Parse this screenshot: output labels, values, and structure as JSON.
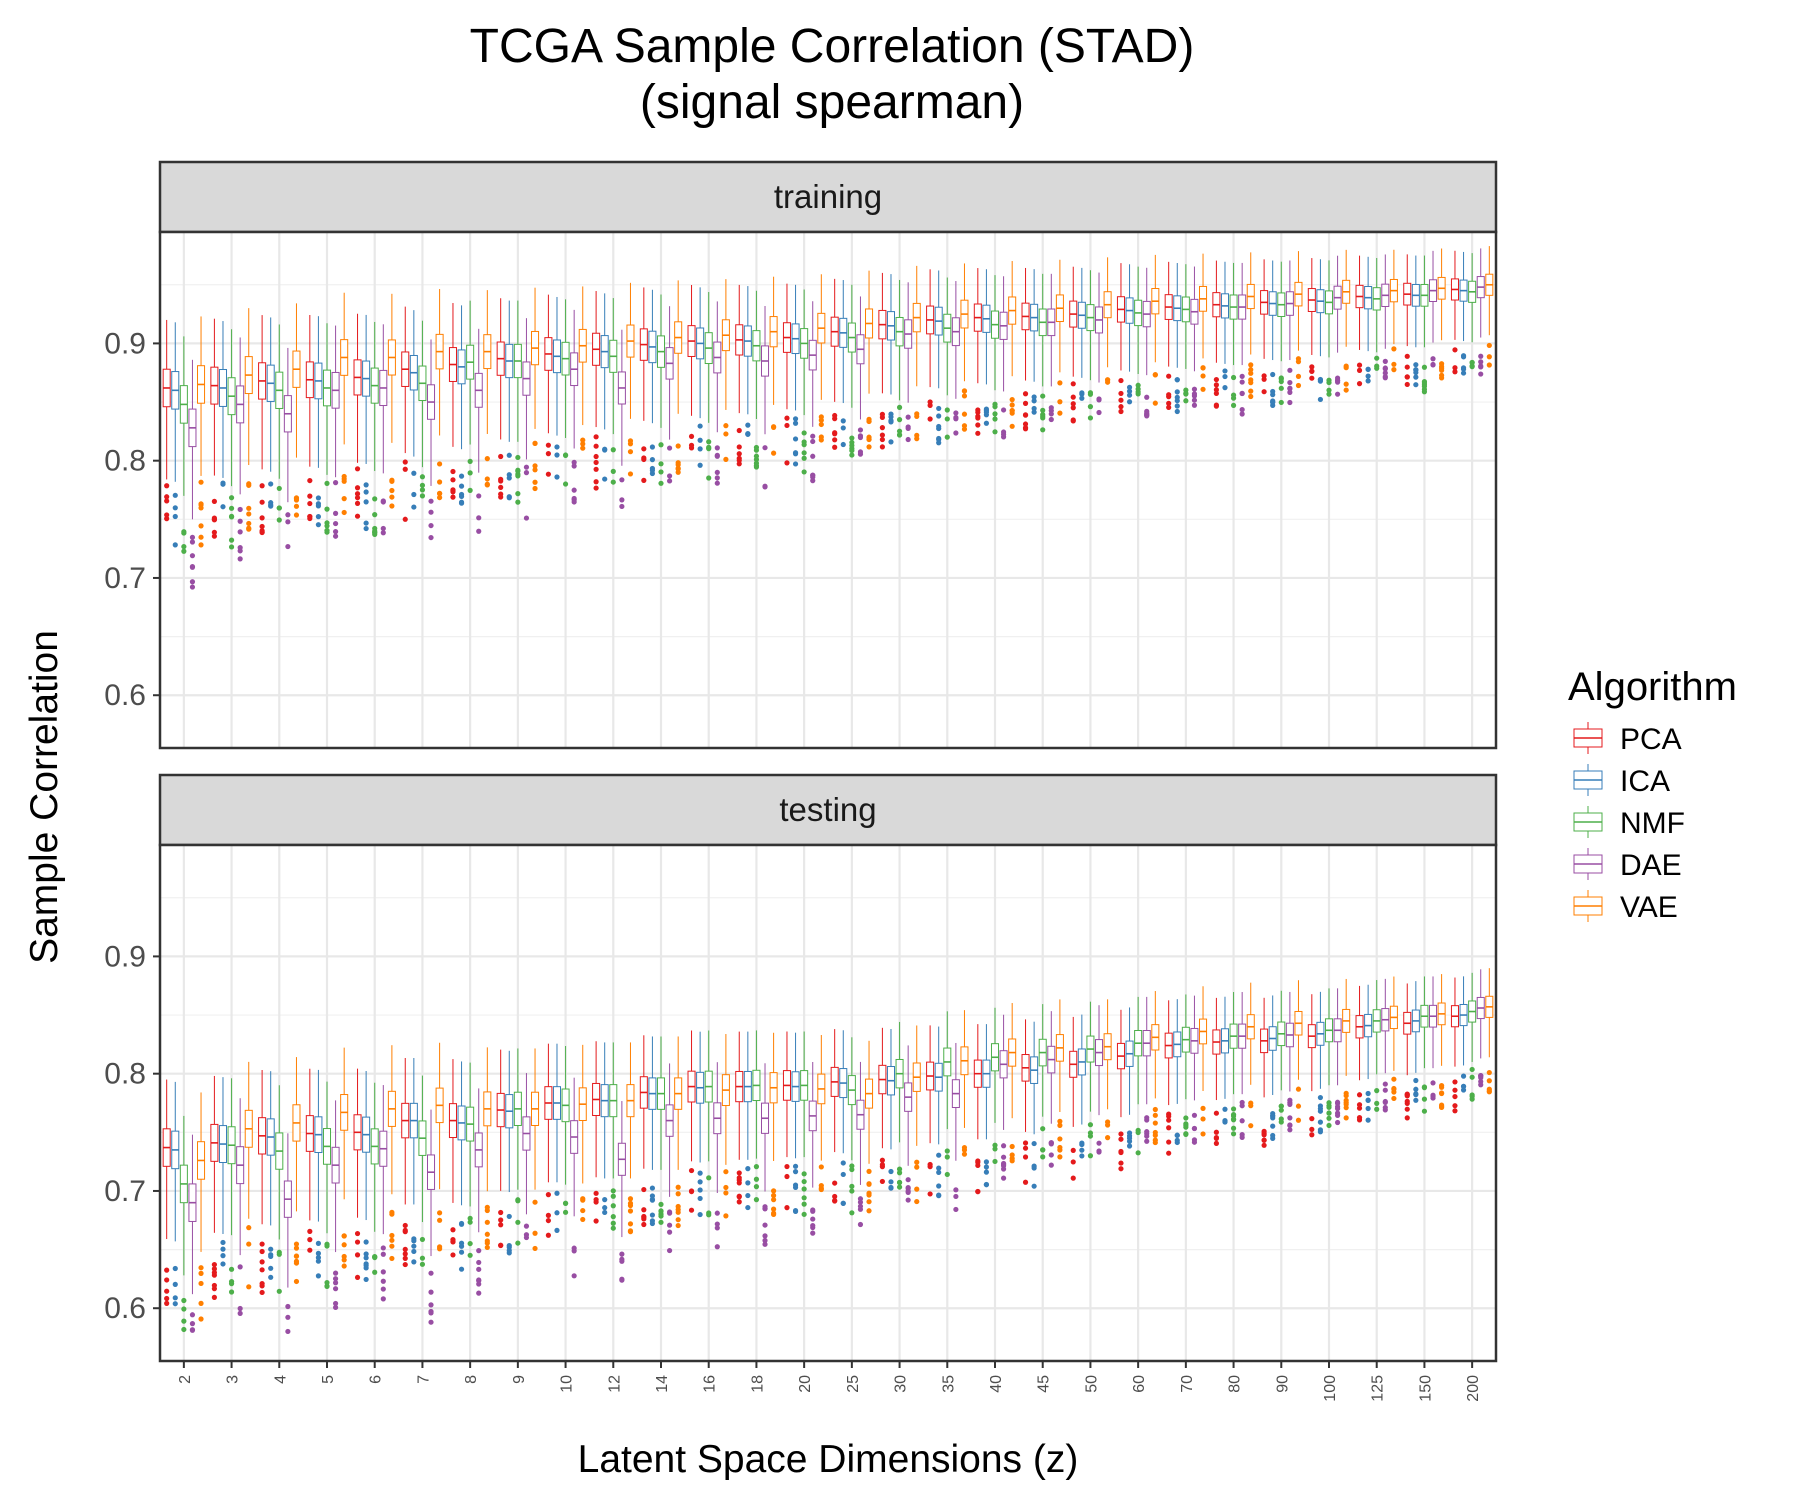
{
  "chart_data": {
    "type": "box",
    "title": "TCGA Sample Correlation (STAD)",
    "subtitle": "(signal spearman)",
    "xlabel": "Latent Space Dimensions (z)",
    "ylabel": "Sample Correlation",
    "ylim": [
      0.555,
      0.995
    ],
    "yticks": [
      0.6,
      0.7,
      0.8,
      0.9
    ],
    "ytick_labels": [
      "0.6",
      "0.7",
      "0.8",
      "0.9"
    ],
    "categories": [
      "2",
      "3",
      "4",
      "5",
      "6",
      "7",
      "8",
      "9",
      "10",
      "12",
      "14",
      "16",
      "18",
      "20",
      "25",
      "30",
      "35",
      "40",
      "45",
      "50",
      "60",
      "70",
      "80",
      "90",
      "100",
      "125",
      "150",
      "200"
    ],
    "legend": {
      "title": "Algorithm",
      "position": "right",
      "entries": [
        {
          "name": "PCA",
          "color": "#e41a1c"
        },
        {
          "name": "ICA",
          "color": "#377eb8"
        },
        {
          "name": "NMF",
          "color": "#4daf4a"
        },
        {
          "name": "DAE",
          "color": "#984ea3"
        },
        {
          "name": "VAE",
          "color": "#ff7f00"
        }
      ]
    },
    "panels": [
      {
        "name": "training",
        "median": {
          "PCA": [
            0.862,
            0.864,
            0.868,
            0.869,
            0.871,
            0.878,
            0.882,
            0.887,
            0.891,
            0.895,
            0.899,
            0.902,
            0.903,
            0.905,
            0.91,
            0.916,
            0.92,
            0.922,
            0.923,
            0.925,
            0.929,
            0.931,
            0.933,
            0.935,
            0.937,
            0.94,
            0.942,
            0.946
          ],
          "ICA": [
            0.86,
            0.862,
            0.866,
            0.868,
            0.87,
            0.875,
            0.88,
            0.885,
            0.889,
            0.893,
            0.897,
            0.9,
            0.902,
            0.904,
            0.909,
            0.915,
            0.919,
            0.921,
            0.922,
            0.924,
            0.928,
            0.93,
            0.932,
            0.934,
            0.936,
            0.939,
            0.941,
            0.945
          ],
          "NMF": [
            0.848,
            0.855,
            0.86,
            0.862,
            0.864,
            0.866,
            0.884,
            0.885,
            0.887,
            0.889,
            0.893,
            0.896,
            0.898,
            0.9,
            0.905,
            0.91,
            0.913,
            0.916,
            0.918,
            0.922,
            0.926,
            0.929,
            0.931,
            0.933,
            0.935,
            0.938,
            0.941,
            0.944
          ],
          "DAE": [
            0.828,
            0.848,
            0.84,
            0.86,
            0.862,
            0.85,
            0.86,
            0.87,
            0.878,
            0.862,
            0.883,
            0.888,
            0.885,
            0.89,
            0.895,
            0.908,
            0.91,
            0.915,
            0.918,
            0.92,
            0.925,
            0.927,
            0.931,
            0.934,
            0.939,
            0.941,
            0.945,
            0.948
          ],
          "VAE": [
            0.865,
            0.873,
            0.878,
            0.888,
            0.888,
            0.893,
            0.893,
            0.896,
            0.898,
            0.902,
            0.905,
            0.907,
            0.91,
            0.913,
            0.917,
            0.922,
            0.925,
            0.928,
            0.93,
            0.933,
            0.936,
            0.938,
            0.94,
            0.942,
            0.944,
            0.945,
            0.947,
            0.95
          ]
        }
      },
      {
        "name": "testing",
        "median": {
          "PCA": [
            0.737,
            0.741,
            0.747,
            0.749,
            0.75,
            0.76,
            0.76,
            0.769,
            0.775,
            0.778,
            0.784,
            0.789,
            0.789,
            0.79,
            0.793,
            0.795,
            0.798,
            0.8,
            0.805,
            0.808,
            0.815,
            0.824,
            0.827,
            0.828,
            0.832,
            0.84,
            0.843,
            0.849
          ],
          "ICA": [
            0.735,
            0.74,
            0.746,
            0.748,
            0.748,
            0.76,
            0.758,
            0.768,
            0.775,
            0.777,
            0.783,
            0.788,
            0.789,
            0.789,
            0.792,
            0.794,
            0.797,
            0.8,
            0.803,
            0.81,
            0.817,
            0.825,
            0.828,
            0.83,
            0.834,
            0.841,
            0.845,
            0.85
          ],
          "NMF": [
            0.706,
            0.739,
            0.734,
            0.738,
            0.738,
            0.745,
            0.757,
            0.77,
            0.773,
            0.777,
            0.783,
            0.789,
            0.79,
            0.79,
            0.786,
            0.8,
            0.81,
            0.814,
            0.818,
            0.821,
            0.826,
            0.829,
            0.832,
            0.834,
            0.837,
            0.845,
            0.849,
            0.853
          ],
          "DAE": [
            0.69,
            0.722,
            0.693,
            0.722,
            0.736,
            0.716,
            0.735,
            0.749,
            0.746,
            0.727,
            0.76,
            0.762,
            0.762,
            0.764,
            0.765,
            0.78,
            0.783,
            0.808,
            0.812,
            0.818,
            0.826,
            0.828,
            0.832,
            0.833,
            0.837,
            0.846,
            0.849,
            0.856
          ],
          "VAE": [
            0.726,
            0.753,
            0.758,
            0.767,
            0.77,
            0.773,
            0.77,
            0.77,
            0.774,
            0.777,
            0.783,
            0.786,
            0.788,
            0.787,
            0.783,
            0.797,
            0.811,
            0.818,
            0.822,
            0.823,
            0.831,
            0.836,
            0.84,
            0.843,
            0.845,
            0.848,
            0.851,
            0.857
          ]
        }
      }
    ]
  }
}
